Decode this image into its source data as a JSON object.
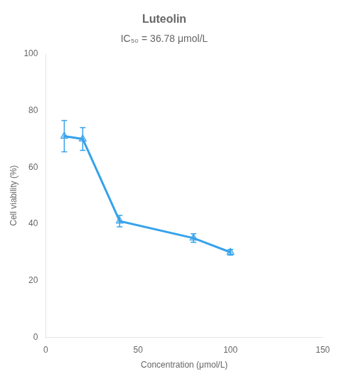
{
  "chart_data": {
    "type": "line",
    "title": "Luteolin",
    "subtitle": "IC₅₀ = 36.78 μmol/L",
    "xlabel": "Concentration (μmol/L)",
    "ylabel": "Cell viability (%)",
    "x": [
      10,
      20,
      40,
      80,
      100
    ],
    "values": [
      71,
      70,
      41,
      35,
      30
    ],
    "errors": [
      5.5,
      4.0,
      2.0,
      1.5,
      1.0
    ],
    "xlim": [
      0,
      150
    ],
    "ylim": [
      0,
      100
    ],
    "xticks": [
      0,
      50,
      100,
      150
    ],
    "yticks": [
      0,
      20,
      40,
      60,
      80,
      100
    ],
    "grid": false,
    "marker": "triangle",
    "line_style": "solid"
  }
}
